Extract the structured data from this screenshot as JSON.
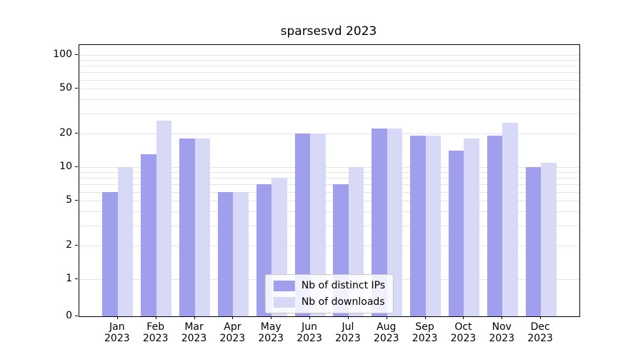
{
  "chart_data": {
    "type": "bar",
    "title": "sparsesvd 2023",
    "categories": [
      "Jan",
      "Feb",
      "Mar",
      "Apr",
      "May",
      "Jun",
      "Jul",
      "Aug",
      "Sep",
      "Oct",
      "Nov",
      "Dec"
    ],
    "year": "2023",
    "series": [
      {
        "name": "Nb of distinct IPs",
        "color": "#9f9fed",
        "values": [
          6,
          13,
          18,
          6,
          7,
          20,
          7,
          22,
          19,
          14,
          19,
          10
        ]
      },
      {
        "name": "Nb of downloads",
        "color": "#d8d8f7",
        "values": [
          10,
          26,
          18,
          6,
          8,
          20,
          10,
          22,
          19,
          18,
          25,
          11
        ]
      }
    ],
    "yscale": "symlog",
    "yticks": [
      0,
      1,
      2,
      5,
      10,
      20,
      50,
      100
    ],
    "gridlines": [
      1,
      2,
      3,
      4,
      5,
      6,
      7,
      8,
      9,
      10,
      20,
      30,
      40,
      50,
      60,
      70,
      80,
      90,
      100
    ],
    "ylim": [
      0,
      120
    ],
    "grid": true,
    "legend_position": "lower center",
    "colors": {
      "grid": "#e4e4e4",
      "axis": "#000000",
      "background": "#ffffff"
    }
  }
}
